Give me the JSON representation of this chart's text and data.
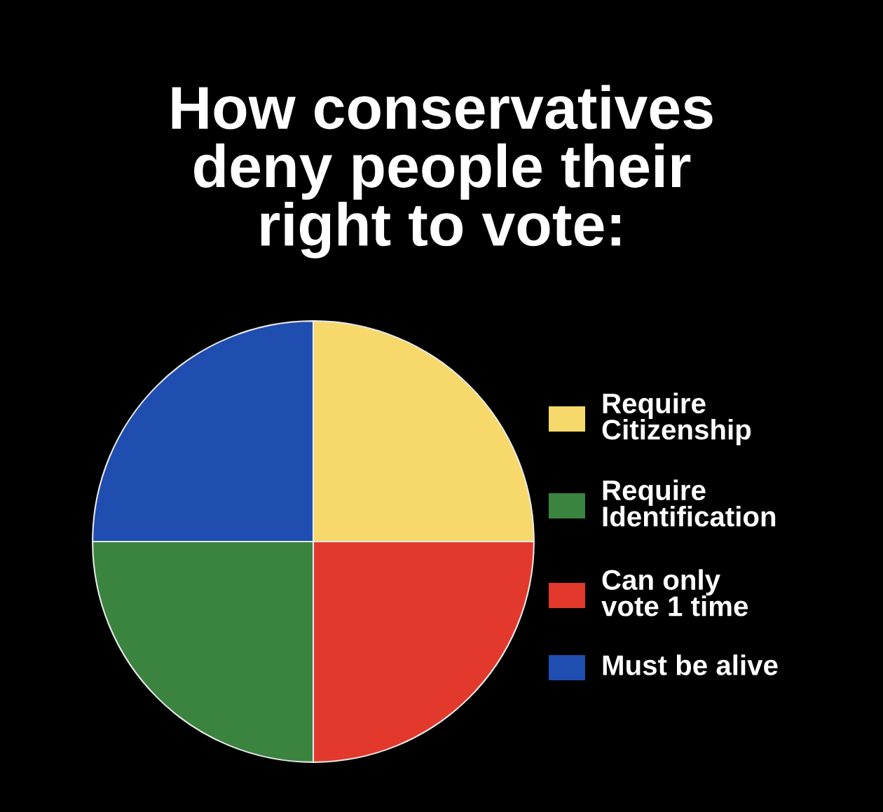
{
  "chart_data": {
    "type": "pie",
    "title": "How conservatives\ndeny people their\nright to vote:",
    "categories": [
      "Require\nCitizenship",
      "Can only\nvote 1 time",
      "Require\nIdentification",
      "Must be alive"
    ],
    "values": [
      25,
      25,
      25,
      25
    ],
    "colors": [
      "#f7d96b",
      "#e3382c",
      "#3a8440",
      "#1f4db0"
    ],
    "legend": "right"
  }
}
